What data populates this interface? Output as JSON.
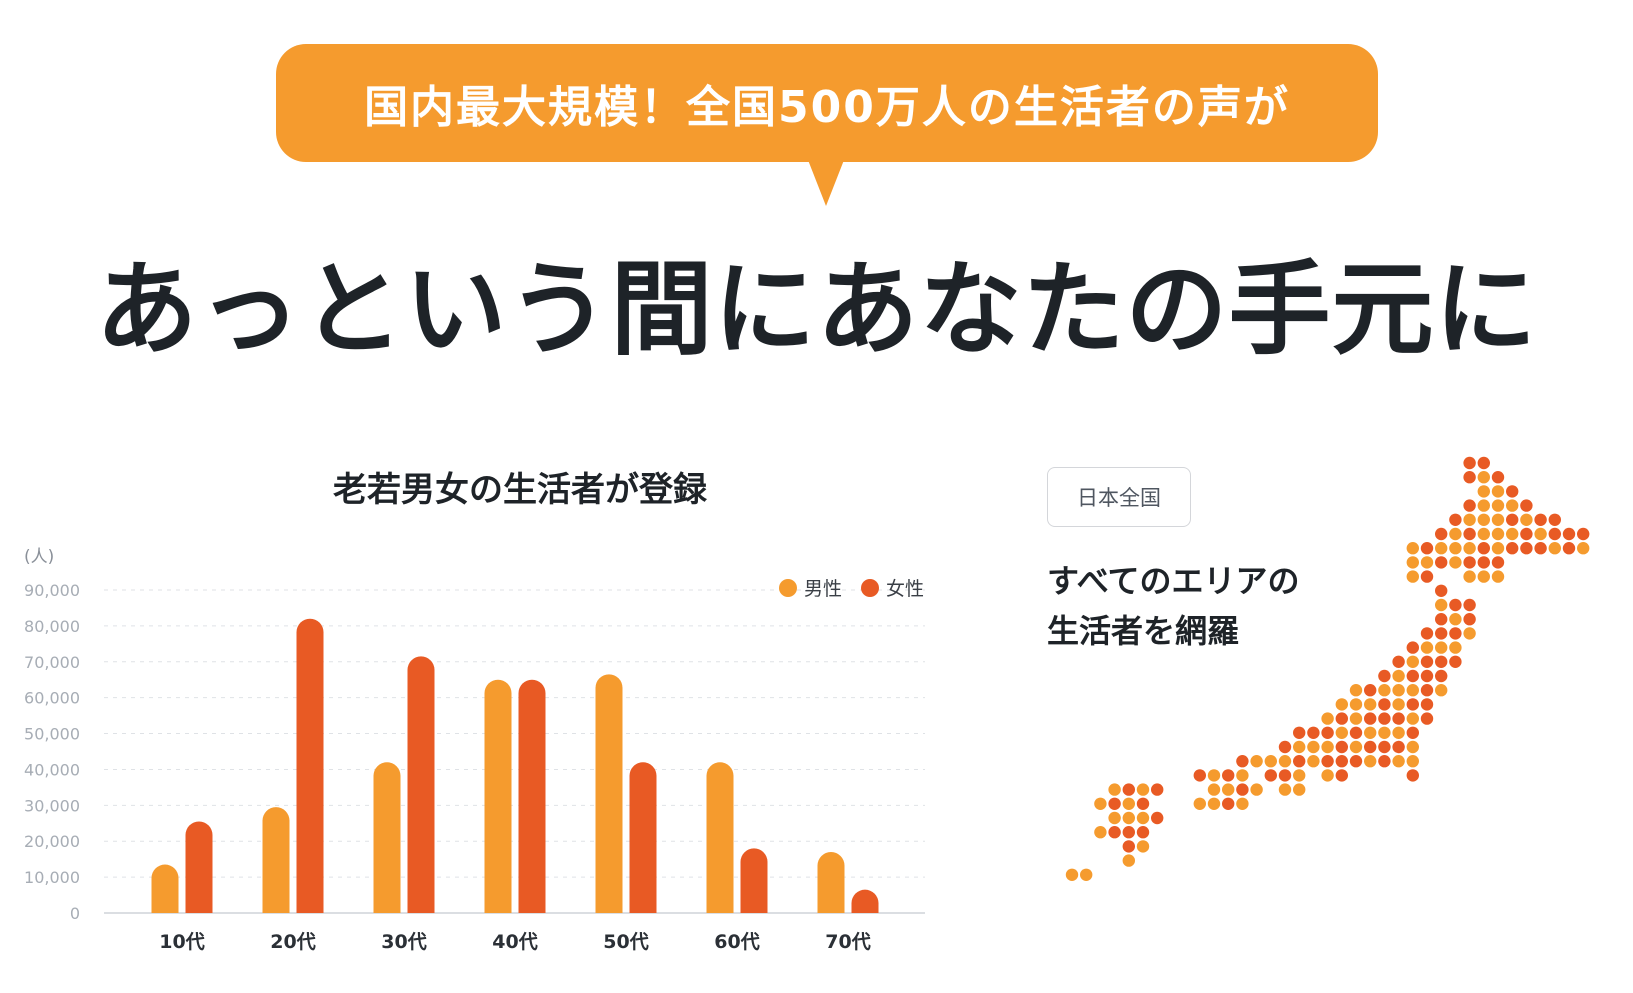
{
  "banner": {
    "text": "国内最大規模！全国500万人の生活者の声が"
  },
  "headline": {
    "text": "あっという間にあなたの手元に"
  },
  "area": {
    "badge": "日本全国",
    "line1": "すべてのエリアの",
    "line2": "生活者を網羅",
    "icon": "japan-map-dots"
  },
  "colors": {
    "accent": "#f59b2e",
    "male": "#f59b2e",
    "female": "#e85a24",
    "text": "#1e2328"
  },
  "chart_data": {
    "type": "bar",
    "title": "老若男女の生活者が登録",
    "unit_label": "(人)",
    "xlabel": "",
    "ylabel": "",
    "categories": [
      "10代",
      "20代",
      "30代",
      "40代",
      "50代",
      "60代",
      "70代"
    ],
    "series": [
      {
        "name": "男性",
        "values": [
          13500,
          29500,
          42000,
          65000,
          66500,
          42000,
          17000
        ]
      },
      {
        "name": "女性",
        "values": [
          25500,
          82000,
          71500,
          65000,
          42000,
          18000,
          6500
        ]
      }
    ],
    "ylim": [
      0,
      90000
    ],
    "yticks": [
      "0",
      "10,000",
      "20,000",
      "30,000",
      "40,000",
      "50,000",
      "60,000",
      "70,000",
      "80,000",
      "90,000"
    ],
    "grid": true,
    "legend": "top-right"
  }
}
